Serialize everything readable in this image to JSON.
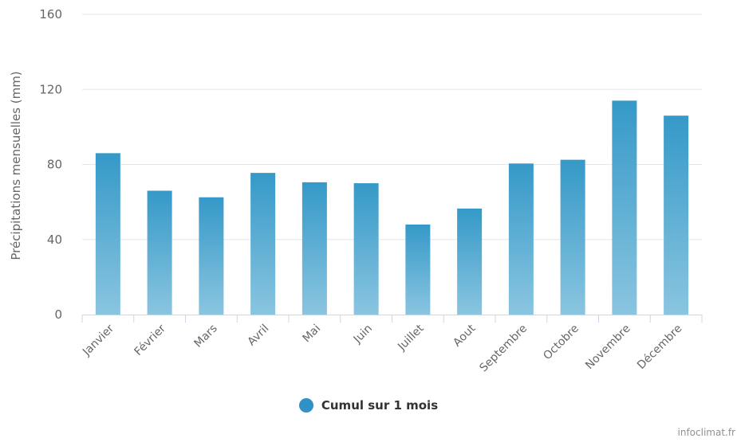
{
  "chart_data": {
    "type": "bar",
    "categories": [
      "Janvier",
      "Février",
      "Mars",
      "Avril",
      "Mai",
      "Juin",
      "Juillet",
      "Aout",
      "Septembre",
      "Octobre",
      "Novembre",
      "Décembre"
    ],
    "series": [
      {
        "name": "Cumul sur 1 mois",
        "values": [
          86,
          66,
          62.5,
          75.5,
          70.5,
          70,
          48,
          56.5,
          80.5,
          82.5,
          114,
          106
        ]
      }
    ],
    "ylabel": "Précipitations mensuelles (mm)",
    "ylim": [
      0,
      160
    ],
    "yticks": [
      0,
      40,
      80,
      120,
      160
    ],
    "grid": true,
    "legend": "bottom-center"
  },
  "colors": {
    "bar_top": "#3599c8",
    "bar_bottom": "#8ac5e0",
    "legend_dot": "#2f91c6",
    "grid": "#e6e6e6",
    "axis": "#ccd6eb"
  },
  "legend": {
    "label": "Cumul sur 1 mois"
  },
  "credit": "infoclimat.fr"
}
